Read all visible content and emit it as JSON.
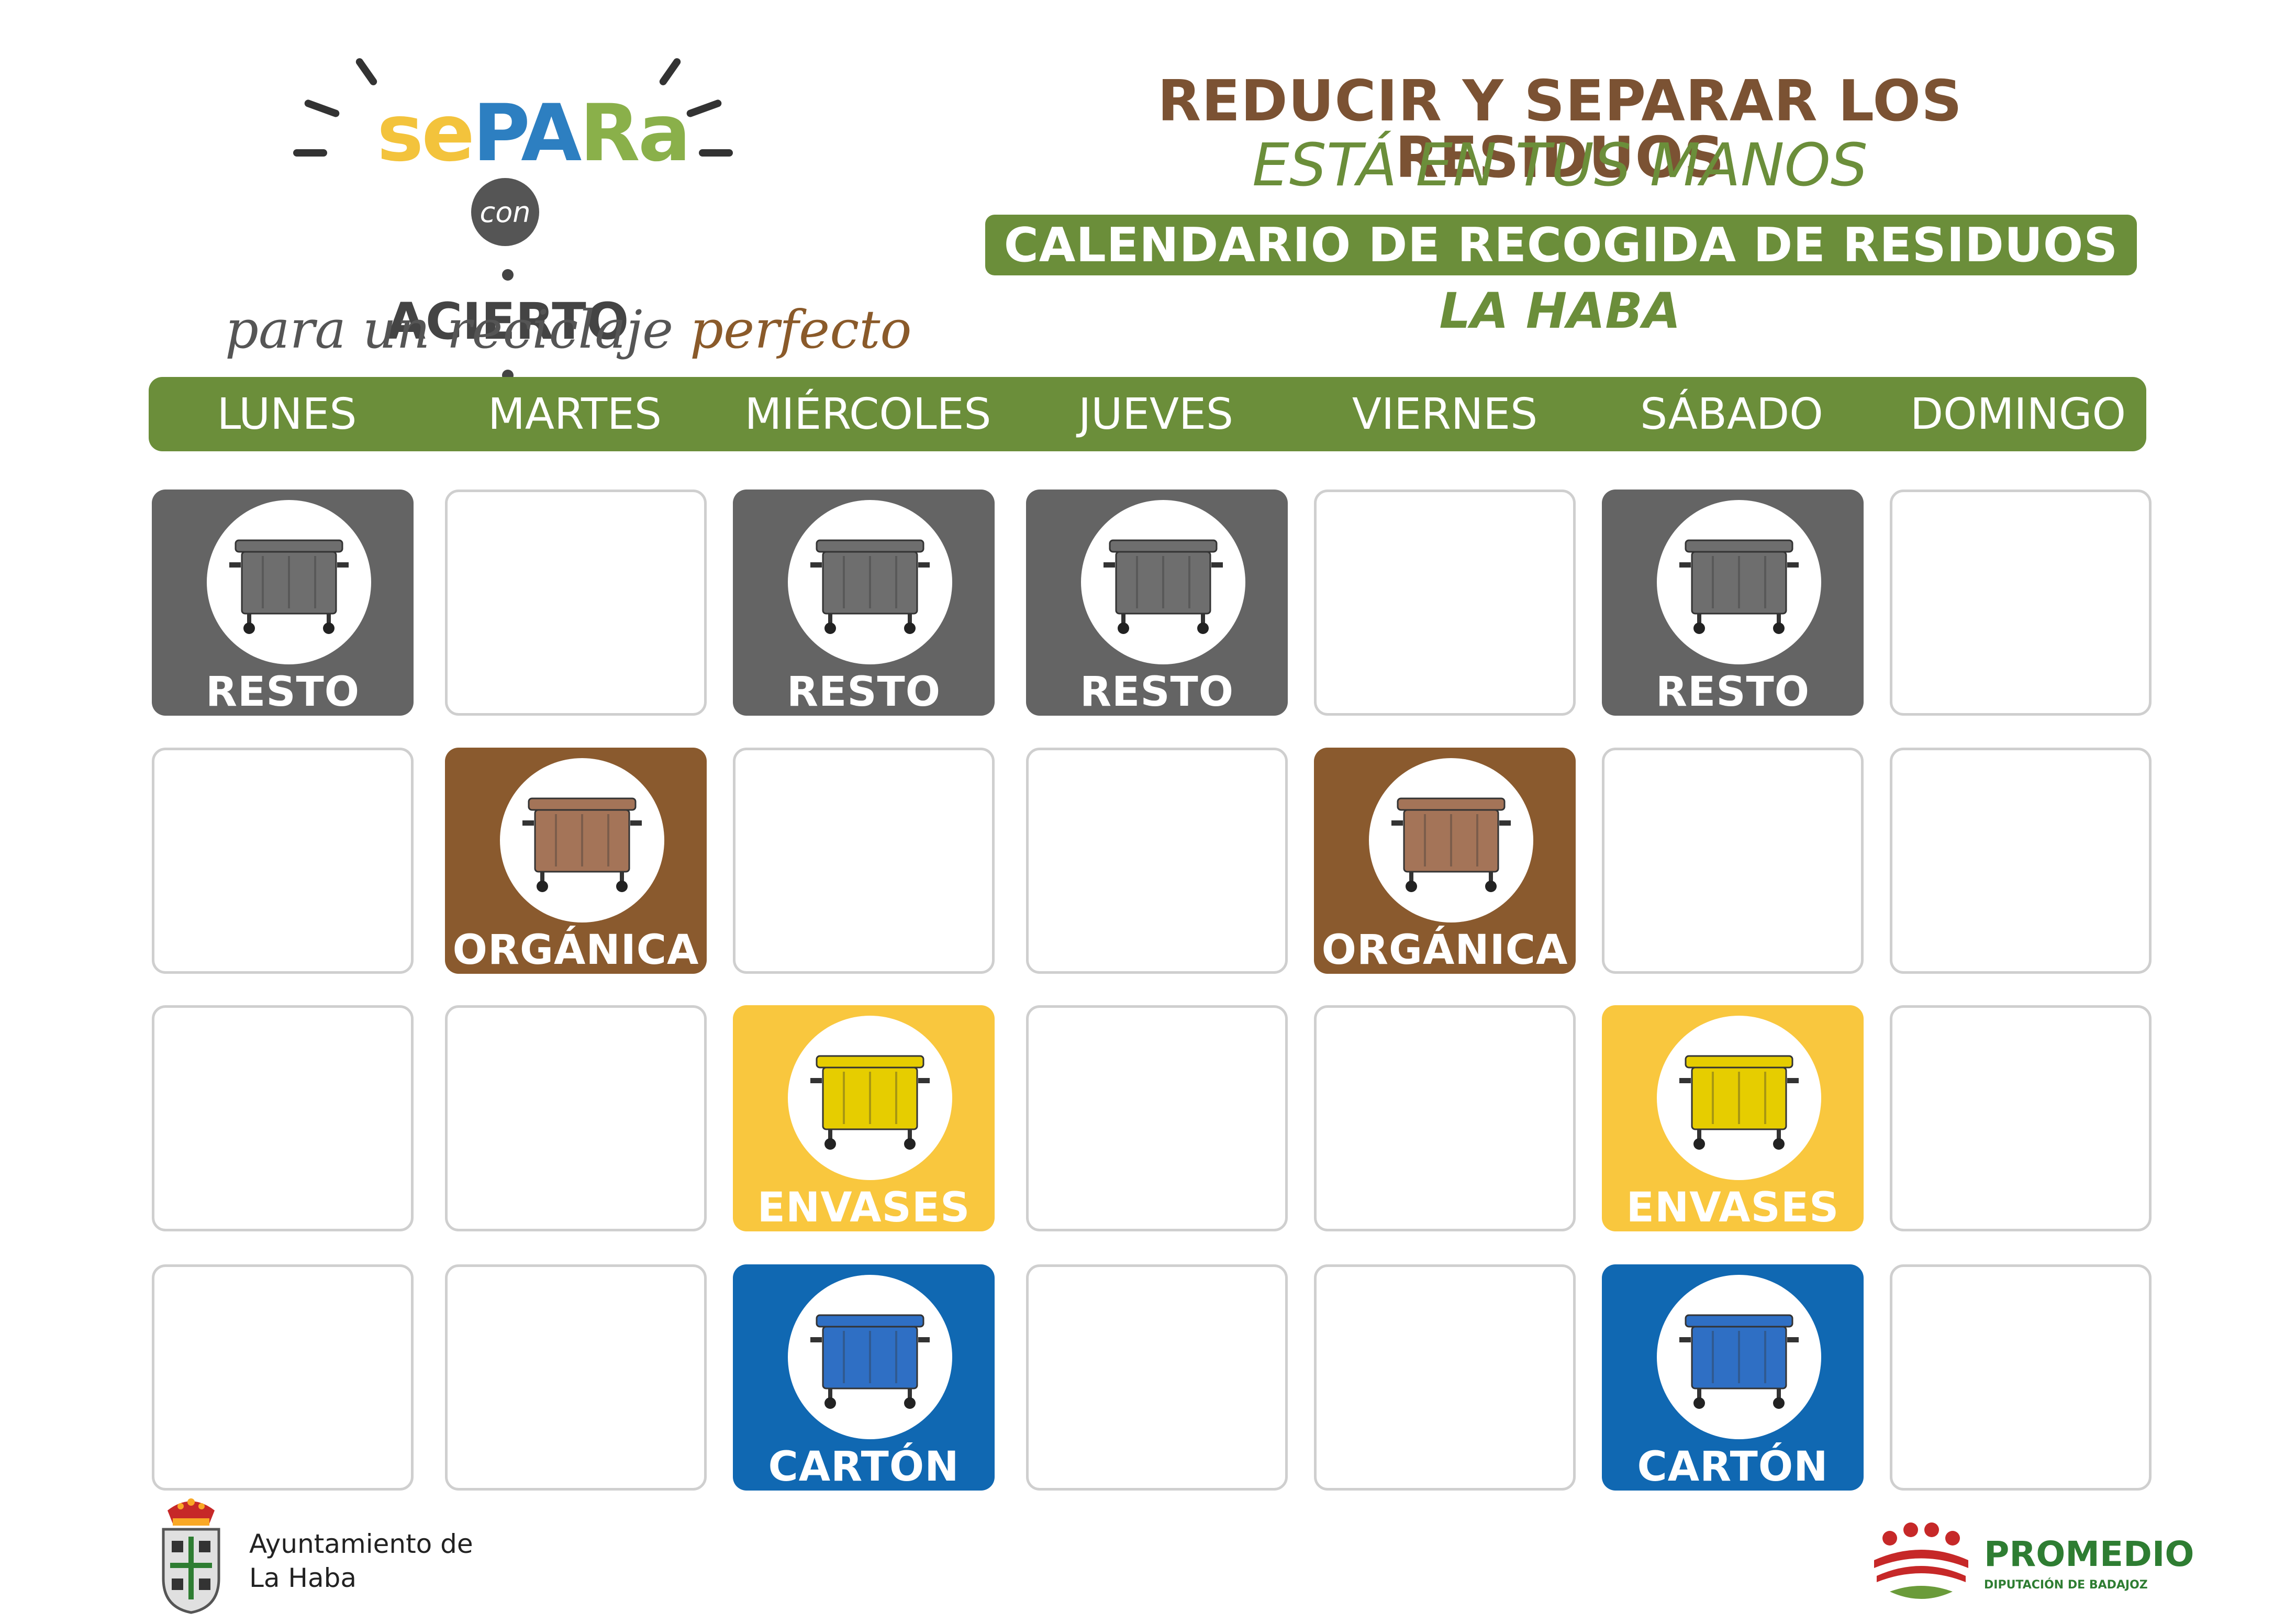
{
  "logo": {
    "separa": [
      "se",
      "PA",
      "Ra"
    ],
    "con": "con",
    "acierto": "ACIERTO",
    "tagline_a": "para un reciclaje",
    "tagline_b": "perfecto"
  },
  "header": {
    "title": "REDUCIR Y SEPARAR LOS RESIDUOS",
    "subtitle": "ESTÁ EN TUS MANOS",
    "calendar_title": "CALENDARIO DE RECOGIDA DE RESIDUOS",
    "town": "LA HABA"
  },
  "days": [
    "LUNES",
    "MARTES",
    "MIÉRCOLES",
    "JUEVES",
    "VIERNES",
    "SÁBADO",
    "DOMINGO"
  ],
  "waste_types": {
    "resto": {
      "label": "RESTO",
      "color": "#646464",
      "bin_color": "#6e6e6e",
      "icon": "grey-container-icon"
    },
    "organica": {
      "label": "ORGÁNICA",
      "color": "#8a5a2e",
      "bin_color": "#a47458",
      "icon": "brown-container-icon"
    },
    "envases": {
      "label": "ENVASES",
      "color": "#f9c73e",
      "bin_color": "#e6cd00",
      "icon": "yellow-container-icon"
    },
    "carton": {
      "label": "CARTÓN",
      "color": "#1068b2",
      "bin_color": "#2f6fc4",
      "icon": "blue-container-icon"
    }
  },
  "schedule": [
    [
      "resto",
      "",
      "resto",
      "resto",
      "",
      "resto",
      ""
    ],
    [
      "",
      "organica",
      "",
      "",
      "organica",
      "",
      ""
    ],
    [
      "",
      "",
      "envases",
      "",
      "",
      "envases",
      ""
    ],
    [
      "",
      "",
      "carton",
      "",
      "",
      "carton",
      ""
    ]
  ],
  "footer": {
    "ayuntamiento_line1": "Ayuntamiento de",
    "ayuntamiento_line2": "La Haba",
    "promedio_name": "PROMEDIO",
    "promedio_sub": "DIPUTACIÓN DE BADAJOZ"
  }
}
